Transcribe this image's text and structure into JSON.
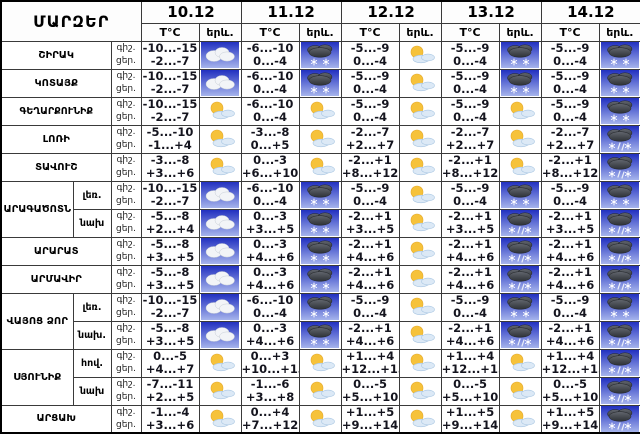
{
  "table": {
    "corner_label": "ՄԱՐԶԵՐ",
    "dates": [
      "10.12",
      "11.12",
      "12.12",
      "13.12",
      "14.12"
    ],
    "temp_header": "T°C",
    "phenomenon_header": "երև.",
    "night_label": "գիշ.",
    "day_label": "ցեր.",
    "icon_types": {
      "cloudy": "white cloud on blue sky tile",
      "snow": "dark cloud with snowflakes on blue sky tile",
      "partly": "sun with small cloud on white background",
      "sleet": "dark cloud with snow and rain on blue sky tile"
    },
    "colors": {
      "sky_top": "#2130c0",
      "sky_bottom": "#a6b4ec",
      "dark_cloud": "#3b3f46",
      "white_cloud": "#f2f4f7",
      "sun": "#f6c23a",
      "light_cloud": "#dce9f6",
      "border": "#3a3a3a",
      "text": "#14141e"
    },
    "rows": [
      {
        "region": "ՇԻՐԱԿ",
        "region_span": 1,
        "subregion": "",
        "cells": [
          {
            "night": "-10...-15",
            "day": "-2...-7",
            "icon": "cloudy"
          },
          {
            "night": "-6...-10",
            "day": "0...-4",
            "icon": "snow"
          },
          {
            "night": "-5...-9",
            "day": "0...-4",
            "icon": "partly"
          },
          {
            "night": "-5...-9",
            "day": "0...-4",
            "icon": "snow"
          },
          {
            "night": "-5...-9",
            "day": "0...-4",
            "icon": "snow"
          }
        ]
      },
      {
        "region": "ԿՈՏԱՅՔ",
        "region_span": 1,
        "subregion": "",
        "cells": [
          {
            "night": "-10...-15",
            "day": "-2...-7",
            "icon": "cloudy"
          },
          {
            "night": "-6...-10",
            "day": "0...-4",
            "icon": "snow"
          },
          {
            "night": "-5...-9",
            "day": "0...-4",
            "icon": "partly"
          },
          {
            "night": "-5...-9",
            "day": "0...-4",
            "icon": "snow"
          },
          {
            "night": "-5...-9",
            "day": "0...-4",
            "icon": "snow"
          }
        ]
      },
      {
        "region": "ԳԵՂԱՐՔՈՒՆԻՔ",
        "region_span": 1,
        "subregion": "",
        "cells": [
          {
            "night": "-10...-15",
            "day": "-2...-7",
            "icon": "partly"
          },
          {
            "night": "-6...-10",
            "day": "0...-4",
            "icon": "partly"
          },
          {
            "night": "-5...-9",
            "day": "0...-4",
            "icon": "partly"
          },
          {
            "night": "-5...-9",
            "day": "0...-4",
            "icon": "partly"
          },
          {
            "night": "-5...-9",
            "day": "0...-4",
            "icon": "snow"
          }
        ]
      },
      {
        "region": "ԼՈՌԻ",
        "region_span": 1,
        "subregion": "",
        "cells": [
          {
            "night": "-5...-10",
            "day": "-1...+4",
            "icon": "partly"
          },
          {
            "night": "-3...-8",
            "day": "0...+5",
            "icon": "partly"
          },
          {
            "night": "-2...-7",
            "day": "+2...+7",
            "icon": "partly"
          },
          {
            "night": "-2...-7",
            "day": "+2...+7",
            "icon": "partly"
          },
          {
            "night": "-2...-7",
            "day": "+2...+7",
            "icon": "sleet"
          }
        ]
      },
      {
        "region": "ՏԱՎՈՒՇ",
        "region_span": 1,
        "subregion": "",
        "cells": [
          {
            "night": "-3...-8",
            "day": "+3...+6",
            "icon": "partly"
          },
          {
            "night": "0...-3",
            "day": "+6...+10",
            "icon": "partly"
          },
          {
            "night": "-2...+1",
            "day": "+8...+12",
            "icon": "partly"
          },
          {
            "night": "-2...+1",
            "day": "+8...+12",
            "icon": "partly"
          },
          {
            "night": "-2...+1",
            "day": "+8...+12",
            "icon": "sleet"
          }
        ]
      },
      {
        "region": "ԱՐԱԳԱԾՈՏՆ",
        "region_span": 2,
        "subregion": "լեռ.",
        "cells": [
          {
            "night": "-10...-15",
            "day": "-2...-7",
            "icon": "cloudy"
          },
          {
            "night": "-6...-10",
            "day": "0...-4",
            "icon": "snow"
          },
          {
            "night": "-5...-9",
            "day": "0...-4",
            "icon": "partly"
          },
          {
            "night": "-5...-9",
            "day": "0...-4",
            "icon": "snow"
          },
          {
            "night": "-5...-9",
            "day": "0...-4",
            "icon": "snow"
          }
        ]
      },
      {
        "region": null,
        "region_span": 0,
        "subregion": "նախ",
        "cells": [
          {
            "night": "-5...-8",
            "day": "+2...+4",
            "icon": "cloudy"
          },
          {
            "night": "0...-3",
            "day": "+3...+5",
            "icon": "snow"
          },
          {
            "night": "-2...+1",
            "day": "+3...+5",
            "icon": "partly"
          },
          {
            "night": "-2...+1",
            "day": "+3...+5",
            "icon": "sleet"
          },
          {
            "night": "-2...+1",
            "day": "+3...+5",
            "icon": "sleet"
          }
        ]
      },
      {
        "region": "ԱՐԱՐԱՏ",
        "region_span": 1,
        "subregion": "",
        "cells": [
          {
            "night": "-5...-8",
            "day": "+3...+5",
            "icon": "cloudy"
          },
          {
            "night": "0...-3",
            "day": "+4...+6",
            "icon": "snow"
          },
          {
            "night": "-2...+1",
            "day": "+4...+6",
            "icon": "partly"
          },
          {
            "night": "-2...+1",
            "day": "+4...+6",
            "icon": "sleet"
          },
          {
            "night": "-2...+1",
            "day": "+4...+6",
            "icon": "sleet"
          }
        ]
      },
      {
        "region": "ԱՐՄԱՎԻՐ",
        "region_span": 1,
        "subregion": "",
        "cells": [
          {
            "night": "-5...-8",
            "day": "+3...+5",
            "icon": "cloudy"
          },
          {
            "night": "0...-3",
            "day": "+4...+6",
            "icon": "snow"
          },
          {
            "night": "-2...+1",
            "day": "+4...+6",
            "icon": "partly"
          },
          {
            "night": "-2...+1",
            "day": "+4...+6",
            "icon": "sleet"
          },
          {
            "night": "-2...+1",
            "day": "+4...+6",
            "icon": "sleet"
          }
        ]
      },
      {
        "region": "ՎԱՅՈՑ ՁՈՐ",
        "region_span": 2,
        "subregion": "լեռ.",
        "cells": [
          {
            "night": "-10...-15",
            "day": "-2...-7",
            "icon": "cloudy"
          },
          {
            "night": "-6...-10",
            "day": "0...-4",
            "icon": "snow"
          },
          {
            "night": "-5...-9",
            "day": "0...-4",
            "icon": "partly"
          },
          {
            "night": "-5...-9",
            "day": "0...-4",
            "icon": "snow"
          },
          {
            "night": "-5...-9",
            "day": "0...-4",
            "icon": "snow"
          }
        ]
      },
      {
        "region": null,
        "region_span": 0,
        "subregion": "նախ.",
        "cells": [
          {
            "night": "-5...-8",
            "day": "+3...+5",
            "icon": "cloudy"
          },
          {
            "night": "0...-3",
            "day": "+4...+6",
            "icon": "snow"
          },
          {
            "night": "-2...+1",
            "day": "+4...+6",
            "icon": "partly"
          },
          {
            "night": "-2...+1",
            "day": "+4...+6",
            "icon": "sleet"
          },
          {
            "night": "-2...+1",
            "day": "+4...+6",
            "icon": "sleet"
          }
        ]
      },
      {
        "region": "ՍՅՈՒՆԻՔ",
        "region_span": 2,
        "subregion": "հով.",
        "cells": [
          {
            "night": "0...-5",
            "day": "+4...+7",
            "icon": "partly"
          },
          {
            "night": "0...+3",
            "day": "+10...+13",
            "icon": "partly"
          },
          {
            "night": "+1...+4",
            "day": "+12...+15",
            "icon": "partly"
          },
          {
            "night": "+1...+4",
            "day": "+12...+15",
            "icon": "partly"
          },
          {
            "night": "+1...+4",
            "day": "+12...+15",
            "icon": "sleet"
          }
        ]
      },
      {
        "region": null,
        "region_span": 0,
        "subregion": "նախ",
        "cells": [
          {
            "night": "-7...-11",
            "day": "+2...+5",
            "icon": "partly"
          },
          {
            "night": "-1...-6",
            "day": "+3...+8",
            "icon": "partly"
          },
          {
            "night": "0...-5",
            "day": "+5...+10",
            "icon": "partly"
          },
          {
            "night": "0...-5",
            "day": "+5...+10",
            "icon": "partly"
          },
          {
            "night": "0...-5",
            "day": "+5...+10",
            "icon": "sleet"
          }
        ]
      },
      {
        "region": "ԱՐՑԱԽ",
        "region_span": 1,
        "subregion": "",
        "cells": [
          {
            "night": "-1...-4",
            "day": "+3...+6",
            "icon": "partly"
          },
          {
            "night": "0...+4",
            "day": "+7...+12",
            "icon": "partly"
          },
          {
            "night": "+1...+5",
            "day": "+9...+14",
            "icon": "partly"
          },
          {
            "night": "+1...+5",
            "day": "+9...+14",
            "icon": "partly"
          },
          {
            "night": "+1...+5",
            "day": "+9...+14",
            "icon": "sleet"
          }
        ]
      }
    ]
  }
}
